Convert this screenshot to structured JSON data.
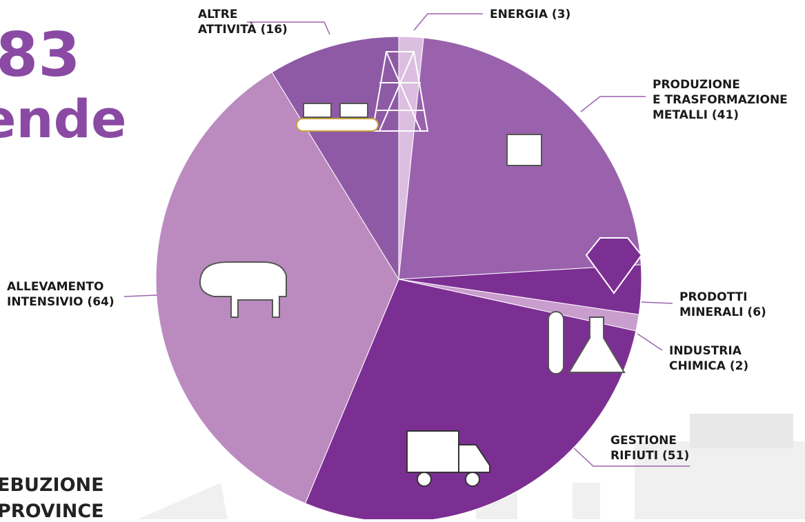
{
  "chart_data": {
    "type": "pie",
    "annotations": [
      "83",
      "ende",
      "EBUZIONE",
      "PROVINCE"
    ],
    "categories": [
      "ENERGIA",
      "PRODUZIONE\nE TRASFORMAZIONE\nMETALLI",
      "PRODOTTI\nMINERALI",
      "INDUSTRIA\nCHIMICA",
      "GESTIONE\nRIFIUTI",
      "ALLEVAMENTO\nINTENSIVIO",
      "ALTRE\nATTIVITÀ"
    ],
    "values": [
      3,
      41,
      6,
      2,
      51,
      64,
      16
    ],
    "value_labels": [
      "(3)",
      "(41)",
      "(6)",
      "(2)",
      "(51)",
      "(64)",
      "(16)"
    ],
    "colors": [
      "#dcbfe0",
      "#9a62ad",
      "#7c2f93",
      "#c99dcd",
      "#7c2f93",
      "#bb8bc0",
      "#8e5aa6"
    ]
  }
}
